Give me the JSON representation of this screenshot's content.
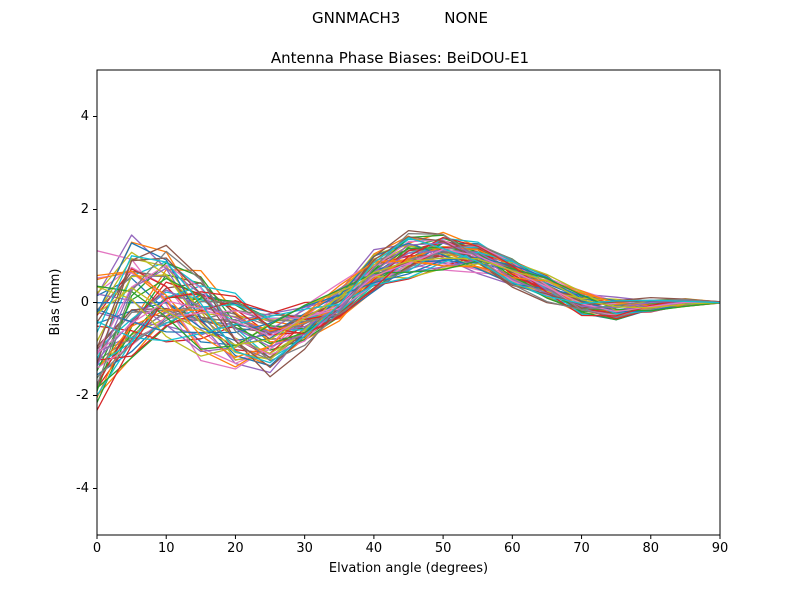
{
  "figure": {
    "suptitle_left": "GNNMACH3",
    "suptitle_right": "NONE"
  },
  "chart_data": {
    "type": "line",
    "title": "Antenna Phase Biases: BeiDOU-E1",
    "xlabel": "Elvation angle (degrees)",
    "ylabel": "Bias (mm)",
    "xlim": [
      0,
      90
    ],
    "ylim": [
      -5,
      5
    ],
    "xticks": [
      0,
      10,
      20,
      30,
      40,
      50,
      60,
      70,
      80,
      90
    ],
    "yticks": [
      -4,
      -2,
      0,
      2,
      4
    ],
    "grid": false,
    "legend": "none",
    "x": [
      0,
      5,
      10,
      15,
      20,
      25,
      30,
      35,
      40,
      45,
      50,
      55,
      60,
      65,
      70,
      75,
      80,
      85,
      90
    ],
    "mean": [
      -0.7,
      0.2,
      0.3,
      -0.2,
      -0.7,
      -0.9,
      -0.5,
      0.0,
      0.7,
      1.05,
      1.1,
      0.95,
      0.6,
      0.3,
      0.0,
      -0.1,
      -0.05,
      0.0,
      0.0
    ],
    "spread": [
      1.8,
      1.4,
      1.1,
      1.0,
      0.9,
      0.75,
      0.5,
      0.45,
      0.45,
      0.5,
      0.45,
      0.35,
      0.35,
      0.3,
      0.3,
      0.25,
      0.15,
      0.1,
      0.02
    ],
    "envelope_upper": [
      1.1,
      1.6,
      1.4,
      0.8,
      0.2,
      -0.15,
      0.0,
      0.45,
      1.15,
      1.55,
      1.55,
      1.3,
      0.95,
      0.6,
      0.3,
      0.15,
      0.1,
      0.1,
      0.02
    ],
    "envelope_lower": [
      -2.5,
      -1.2,
      -0.8,
      -1.2,
      -1.6,
      -1.65,
      -1.0,
      -0.45,
      0.25,
      0.55,
      0.65,
      0.6,
      0.25,
      0.0,
      -0.3,
      -0.35,
      -0.2,
      -0.1,
      -0.02
    ],
    "n_series": 60,
    "seed": 12,
    "line_width": 1.3,
    "colors": [
      "#1f77b4",
      "#ff7f0e",
      "#2ca02c",
      "#d62728",
      "#9467bd",
      "#8c564b",
      "#e377c2",
      "#7f7f7f",
      "#bcbd22",
      "#17becf"
    ],
    "axes_color": "#000000",
    "background": "#ffffff"
  }
}
